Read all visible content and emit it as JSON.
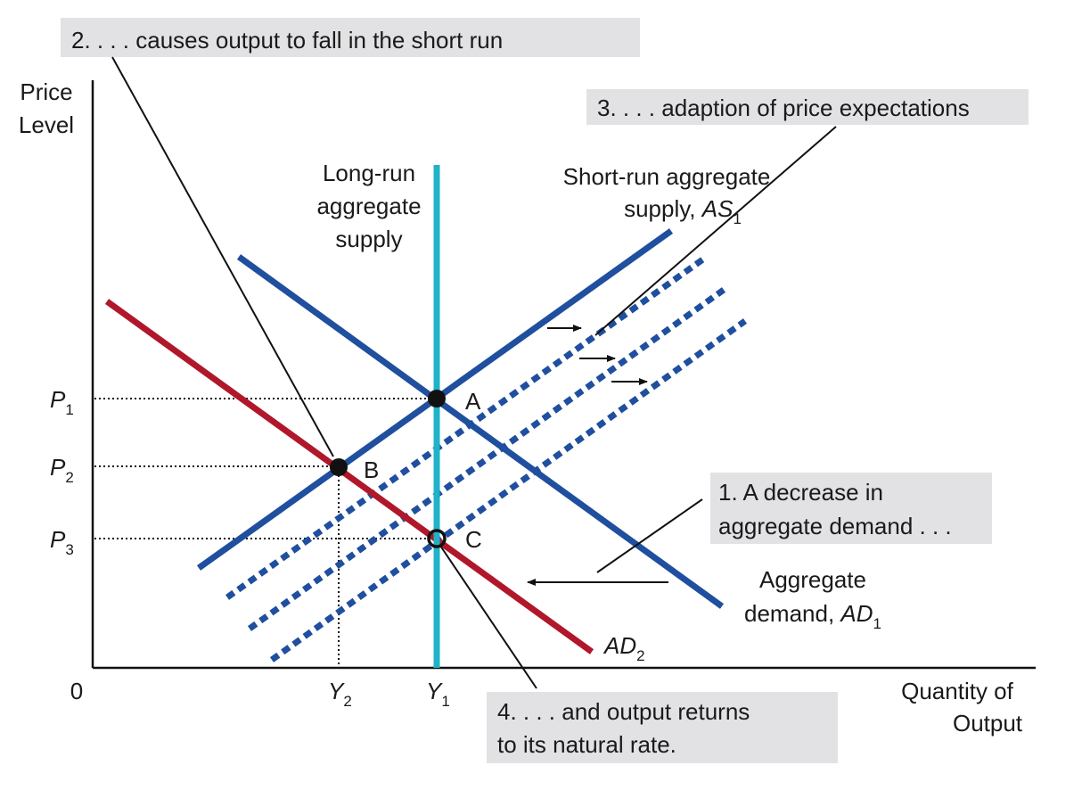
{
  "colors": {
    "aggregate_demand": "#1f4f9e",
    "aggregate_demand_2": "#b0172a",
    "short_run_supply": "#1f4f9e",
    "long_run_supply": "#1fb2c8",
    "callout_background": "#e2e2e4",
    "text": "#1a1a1a"
  },
  "axes": {
    "y_label_line1": "Price",
    "y_label_line2": "Level",
    "x_label_line1": "Quantity of",
    "x_label_line2": "Output",
    "origin": "0"
  },
  "price_levels": [
    {
      "base": "P",
      "sub": "1"
    },
    {
      "base": "P",
      "sub": "2"
    },
    {
      "base": "P",
      "sub": "3"
    }
  ],
  "output_levels": [
    {
      "base": "Y",
      "sub": "2"
    },
    {
      "base": "Y",
      "sub": "1"
    }
  ],
  "curves": {
    "long_run_supply": {
      "line1": "Long-run",
      "line2": "aggregate",
      "line3": "supply"
    },
    "short_run_supply": {
      "line1": "Short-run aggregate",
      "line2_prefix": "supply, ",
      "line2_var": "AS",
      "line2_sub": "1"
    },
    "aggregate_demand_1": {
      "line1": "Aggregate",
      "line2_prefix": "demand, ",
      "line2_var": "AD",
      "line2_sub": "1"
    },
    "aggregate_demand_2": {
      "var": "AD",
      "sub": "2"
    }
  },
  "points": {
    "a": "A",
    "b": "B",
    "c": "C"
  },
  "callouts": {
    "step1_line1": "1. A decrease in",
    "step1_line2": "aggregate demand . . .",
    "step2": "2. . . . causes output to fall in the short run",
    "step3": "3. . . . adaption of price expectations",
    "step4_line1": "4. . . . and output returns",
    "step4_line2": "to its natural rate."
  }
}
